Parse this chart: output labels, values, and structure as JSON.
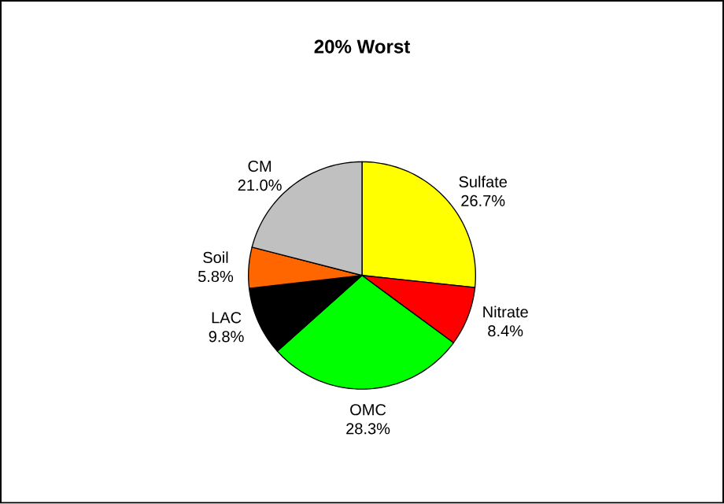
{
  "chart_data": {
    "type": "pie",
    "title": "20% Worst",
    "categories": [
      "Sulfate",
      "Nitrate",
      "OMC",
      "LAC",
      "Soil",
      "CM"
    ],
    "values": [
      26.7,
      8.4,
      28.3,
      9.8,
      5.8,
      21.0
    ],
    "colors": [
      "#ffff00",
      "#ff0000",
      "#00ff00",
      "#000000",
      "#ff6600",
      "#c0c0c0"
    ],
    "value_labels": [
      "26.7%",
      "8.4%",
      "28.3%",
      "9.8%",
      "5.8%",
      "21.0%"
    ]
  }
}
